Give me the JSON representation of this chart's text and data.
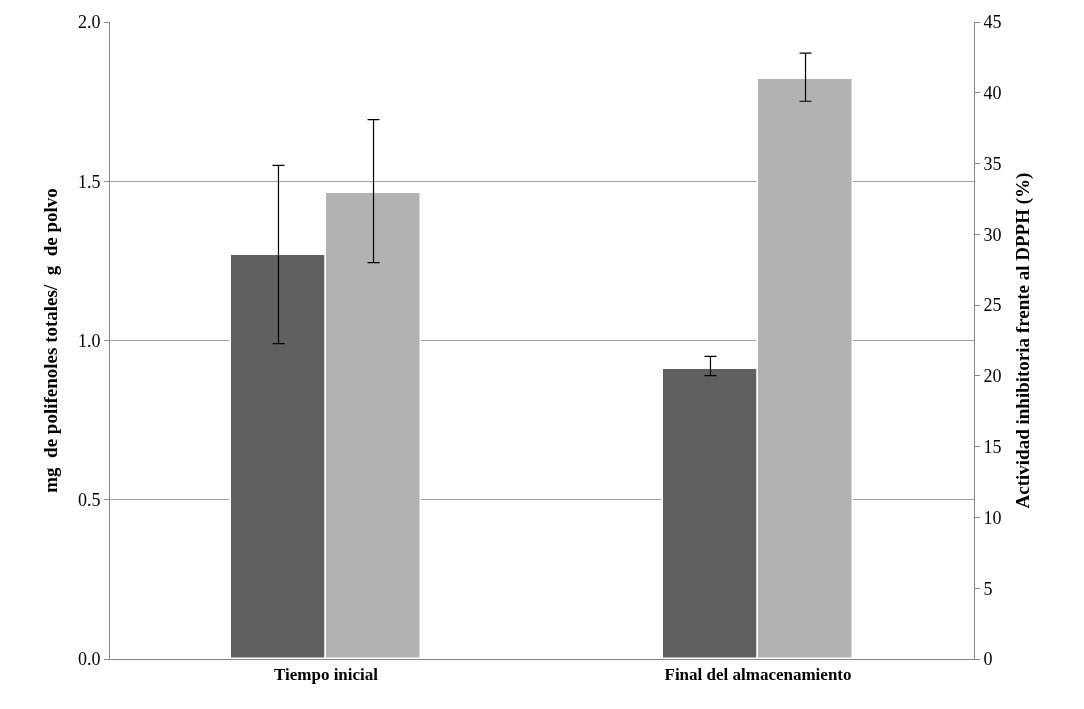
{
  "chart_data": {
    "type": "bar",
    "categories": [
      "Tiempo inicial",
      "Final del almacenamiento"
    ],
    "ylabel": "mg  de polifenoles totales/  g  de polvo",
    "y2label": "Actividad inhibitoria frente al DPPH (%)",
    "series": [
      {
        "color": "#606060",
        "values": [
          1.27,
          0.91
        ],
        "errors": [
          [
            0.99,
            1.55
          ],
          [
            0.89,
            0.95
          ]
        ]
      },
      {
        "color": "#b2b2b2",
        "axis": "y2",
        "values": [
          32.9,
          41.0
        ],
        "errors": [
          [
            28.0,
            38.1
          ],
          [
            39.4,
            42.8
          ]
        ]
      }
    ],
    "ylim": [
      0,
      2.0
    ],
    "yticks": [
      {
        "value": 0,
        "label": "0.0"
      },
      {
        "value": 0.5,
        "label": "0.5"
      },
      {
        "value": 1.0,
        "label": "1.0"
      },
      {
        "value": 1.5,
        "label": "1.5"
      },
      {
        "value": 2.0,
        "label": "2.0"
      }
    ],
    "y2lim": [
      0,
      45
    ],
    "y2ticks": [
      0,
      5,
      10,
      15,
      20,
      25,
      30,
      35,
      40,
      45
    ],
    "grid": "y"
  }
}
